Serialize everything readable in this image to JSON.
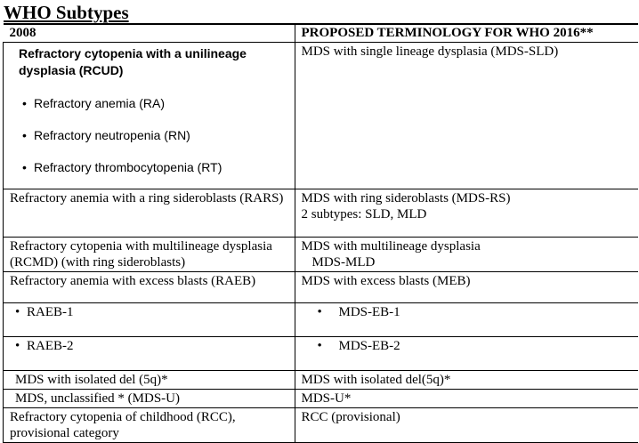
{
  "title": "WHO Subtypes",
  "headers": [
    "2008",
    "PROPOSED TERMINOLOGY FOR WHO 2016**"
  ],
  "row1": {
    "left_title": "Refractory cytopenia with a unilineage dysplasia (RCUD)",
    "left_items": [
      "Refractory anemia (RA)",
      "Refractory neutropenia (RN)",
      "Refractory thrombocytopenia (RT)"
    ],
    "right": "MDS with single lineage dysplasia (MDS-SLD)"
  },
  "row2": {
    "left": "Refractory anemia with a ring sideroblasts (RARS)",
    "right_line1": "MDS with ring sideroblasts (MDS-RS)",
    "right_line2": "2 subtypes: SLD, MLD"
  },
  "row3": {
    "left": "Refractory cytopenia with  multilineage dysplasia (RCMD) (with ring sideroblasts)",
    "right_line1": "MDS with multilineage dysplasia",
    "right_line2": "MDS-MLD"
  },
  "row4": {
    "left": "Refractory anemia with excess blasts (RAEB)",
    "right": "MDS with excess blasts (MEB)"
  },
  "row5": {
    "left": "RAEB-1",
    "right": "MDS-EB-1"
  },
  "row6": {
    "left": "RAEB-2",
    "right": "MDS-EB-2"
  },
  "row7": {
    "left": "MDS with isolated del (5q)*",
    "right": "MDS with isolated del(5q)*"
  },
  "row8": {
    "left": "MDS, unclassified * (MDS-U)",
    "right": "MDS-U*"
  },
  "row9": {
    "left": "Refractory cytopenia of childhood (RCC), provisional category",
    "right": "RCC (provisional)"
  },
  "bullet": "•"
}
